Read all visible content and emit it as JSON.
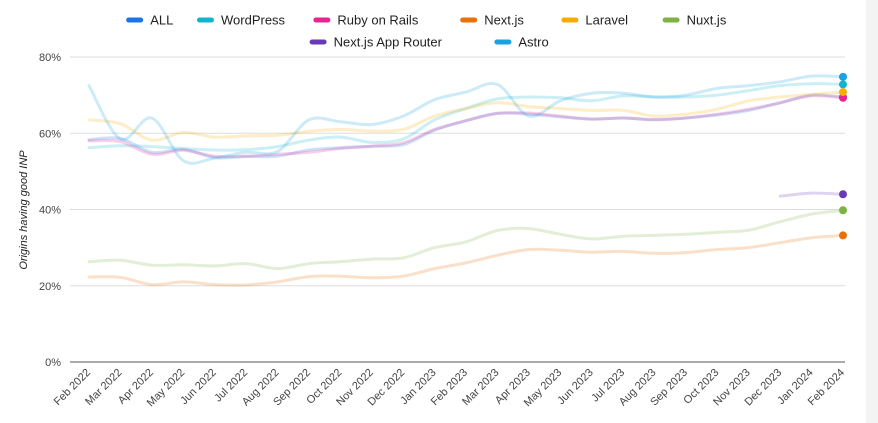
{
  "chart_data": {
    "type": "line",
    "ylabel": "Origins having good INP",
    "ylim": [
      0,
      80
    ],
    "yticks": [
      0,
      20,
      40,
      60,
      80
    ],
    "ytick_suffix": "%",
    "grid": true,
    "legend_position": "top",
    "categories": [
      "Feb 2022",
      "Mar 2022",
      "Apr 2022",
      "May 2022",
      "Jun 2022",
      "Jul 2022",
      "Aug 2022",
      "Sep 2022",
      "Oct 2022",
      "Nov 2022",
      "Dec 2022",
      "Jan 2023",
      "Feb 2023",
      "Mar 2023",
      "Apr 2023",
      "May 2023",
      "Jun 2023",
      "Jul 2023",
      "Aug 2023",
      "Sep 2023",
      "Oct 2023",
      "Nov 2023",
      "Dec 2023",
      "Jan 2024",
      "Feb 2024"
    ],
    "series": [
      {
        "name": "ALL",
        "color": "#1a73e8",
        "values": [
          58.3,
          58.6,
          55.0,
          55.8,
          53.6,
          53.9,
          54.0,
          55.6,
          56.2,
          56.6,
          57.0,
          60.8,
          63.3,
          65.2,
          65.0,
          64.3,
          63.7,
          64.0,
          63.6,
          64.0,
          64.8,
          66.0,
          68.0,
          70.0,
          69.5
        ]
      },
      {
        "name": "WordPress",
        "color": "#12b5cb",
        "values": [
          56.2,
          56.7,
          56.5,
          56.0,
          55.6,
          55.7,
          56.5,
          58.2,
          59.0,
          57.6,
          58.5,
          63.5,
          66.5,
          69.0,
          69.5,
          69.3,
          68.5,
          69.8,
          69.5,
          69.5,
          70.0,
          71.2,
          72.5,
          73.0,
          72.8
        ]
      },
      {
        "name": "Ruby on Rails",
        "color": "#e52592",
        "values": [
          58.0,
          57.8,
          54.5,
          55.5,
          54.0,
          54.0,
          54.5,
          55.0,
          56.0,
          56.6,
          57.5,
          61.0,
          63.3,
          65.2,
          65.3,
          64.5,
          63.7,
          64.0,
          63.5,
          64.0,
          65.0,
          66.3,
          68.0,
          69.8,
          69.3
        ]
      },
      {
        "name": "Next.js",
        "color": "#e8710a",
        "values": [
          22.3,
          22.2,
          20.3,
          21.0,
          20.3,
          20.2,
          21.0,
          22.4,
          22.5,
          22.1,
          22.5,
          24.5,
          26.0,
          28.0,
          29.5,
          29.3,
          28.8,
          29.0,
          28.5,
          28.7,
          29.5,
          30.0,
          31.3,
          32.6,
          33.2
        ]
      },
      {
        "name": "Laravel",
        "color": "#f9ab00",
        "values": [
          63.5,
          62.5,
          58.2,
          60.2,
          59.0,
          59.3,
          59.5,
          60.5,
          61.0,
          60.6,
          61.0,
          64.5,
          66.5,
          68.0,
          67.0,
          66.5,
          66.0,
          66.0,
          64.5,
          65.0,
          66.3,
          68.5,
          69.5,
          70.2,
          70.8
        ]
      },
      {
        "name": "Nuxt.js",
        "color": "#7cb342",
        "values": [
          26.3,
          26.7,
          25.4,
          25.5,
          25.2,
          25.8,
          24.5,
          25.8,
          26.3,
          27.0,
          27.3,
          30.0,
          31.5,
          34.5,
          35.0,
          33.5,
          32.3,
          33.0,
          33.2,
          33.5,
          34.0,
          34.6,
          36.8,
          38.8,
          39.8
        ]
      },
      {
        "name": "Next.js App Router",
        "color": "#673ab7",
        "values": [
          null,
          null,
          null,
          null,
          null,
          null,
          null,
          null,
          null,
          null,
          null,
          null,
          null,
          null,
          null,
          null,
          null,
          null,
          null,
          null,
          null,
          null,
          43.5,
          44.3,
          44.0
        ]
      },
      {
        "name": "Astro",
        "color": "#1aa1e0",
        "values": [
          72.5,
          58.5,
          64.0,
          52.8,
          53.5,
          55.0,
          55.2,
          63.5,
          63.0,
          62.3,
          64.5,
          68.8,
          70.8,
          72.8,
          64.5,
          68.5,
          70.5,
          70.5,
          69.5,
          70.0,
          71.8,
          72.5,
          73.5,
          75.0,
          74.8
        ]
      }
    ]
  }
}
